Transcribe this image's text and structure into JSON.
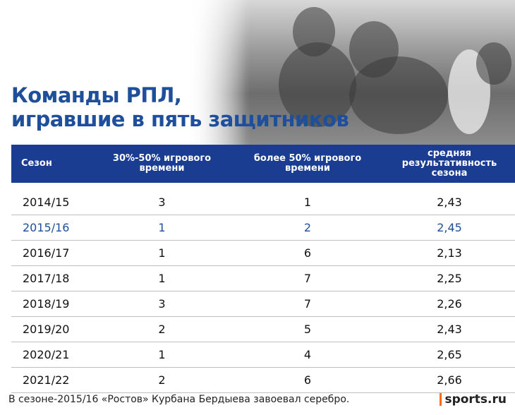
{
  "title": {
    "line1": "Команды РПЛ,",
    "line2": "игравшие в пять защитников"
  },
  "table": {
    "headers": [
      "Сезон",
      "30%-50% игрового времени",
      "более 50% игрового времени",
      "средняя результативность сезона"
    ],
    "rows": [
      [
        "2014/15",
        "3",
        "1",
        "2,43"
      ],
      [
        "2015/16",
        "1",
        "2",
        "2,45"
      ],
      [
        "2016/17",
        "1",
        "6",
        "2,13"
      ],
      [
        "2017/18",
        "1",
        "7",
        "2,25"
      ],
      [
        "2018/19",
        "3",
        "7",
        "2,26"
      ],
      [
        "2019/20",
        "2",
        "5",
        "2,43"
      ],
      [
        "2020/21",
        "1",
        "4",
        "2,65"
      ],
      [
        "2021/22",
        "2",
        "6",
        "2,66"
      ]
    ],
    "highlight_row": "2015/16"
  },
  "footer": {
    "note": "В сезоне-2015/16 «Ростов» Курбана Бердыева завоевал серебро.",
    "brand": "sports.ru"
  },
  "colors": {
    "accent": "#1f4f9a",
    "header_bg": "#1a3c91",
    "brand_mark": "#ff6a13"
  }
}
